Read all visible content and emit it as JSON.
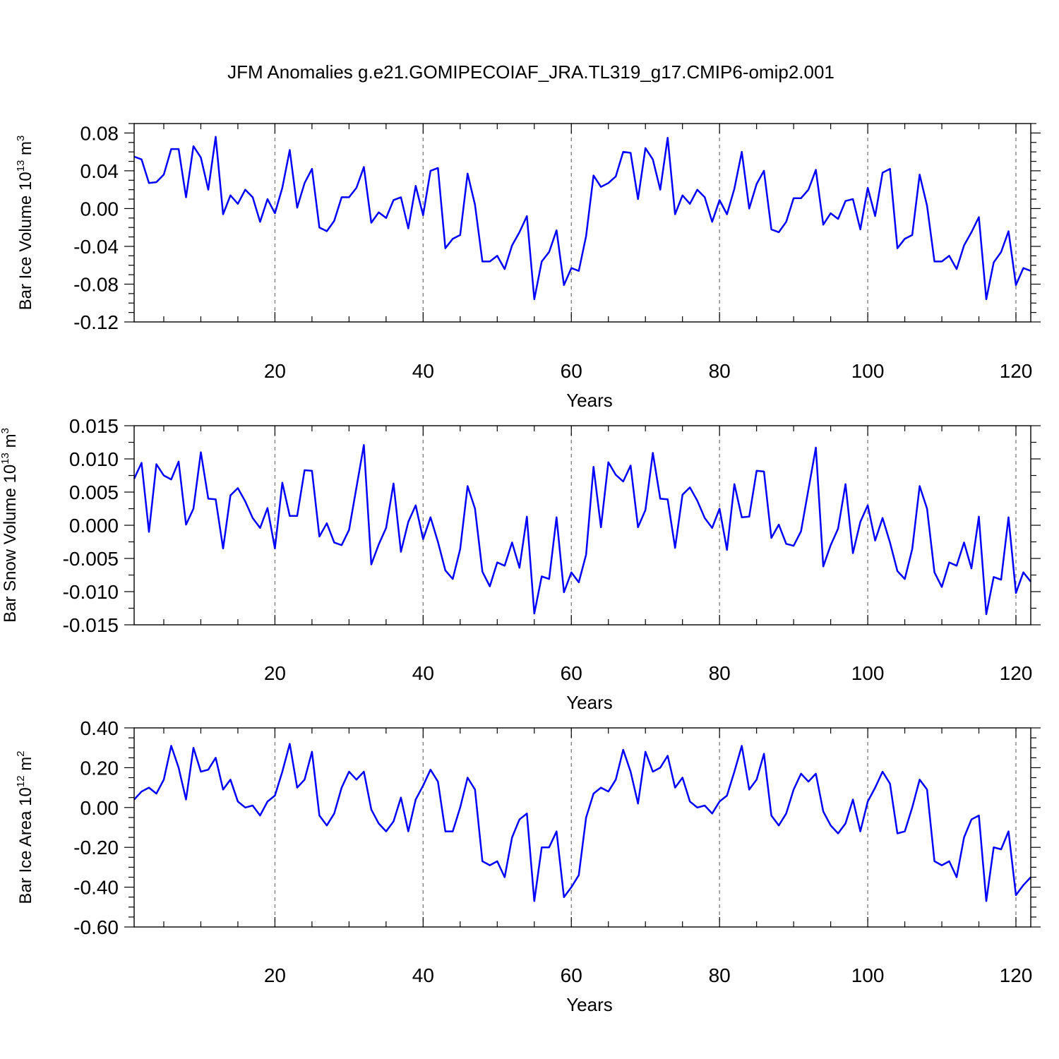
{
  "title": "JFM Anomalies g.e21.GOMIPECOIAF_JRA.TL319_g17.CMIP6-omip2.001",
  "line_color": "#0000ff",
  "chart_data": [
    {
      "type": "line",
      "ylabel": "Bar Ice Volume 10",
      "ylabel_exp": "13",
      "ylabel_unit": "m",
      "ylabel_unit_exp": "3",
      "xlabel": "Years",
      "xlim": [
        1,
        122
      ],
      "ylim": [
        -0.12,
        0.09
      ],
      "xticks": [
        20,
        40,
        60,
        80,
        100,
        120
      ],
      "xtick_labels": [
        "20",
        "40",
        "60",
        "80",
        "100",
        "120"
      ],
      "yticks": [
        -0.12,
        -0.08,
        -0.04,
        0.0,
        0.04,
        0.08
      ],
      "ytick_labels": [
        "-0.12",
        "-0.08",
        "-0.04",
        "0.00",
        "0.04",
        "0.08"
      ],
      "grid": "vertical dashed at major x ticks",
      "series": [
        {
          "values": [
            0.055,
            0.052,
            0.027,
            0.028,
            0.036,
            0.063,
            0.063,
            0.012,
            0.066,
            0.054,
            0.02,
            0.076,
            -0.006,
            0.014,
            0.005,
            0.02,
            0.012,
            -0.014,
            0.01,
            -0.005,
            0.022,
            0.062,
            0.001,
            0.027,
            0.042,
            -0.02,
            -0.024,
            -0.013,
            0.012,
            0.012,
            0.022,
            0.044,
            -0.015,
            -0.004,
            -0.01,
            0.009,
            0.012,
            -0.021,
            0.024,
            -0.007,
            0.04,
            0.043,
            -0.042,
            -0.032,
            -0.028,
            0.037,
            0.004,
            -0.056,
            -0.056,
            -0.05,
            -0.064,
            -0.039,
            -0.025,
            -0.008,
            -0.096,
            -0.056,
            -0.046,
            -0.023,
            -0.081,
            -0.063,
            -0.066,
            -0.029,
            0.035,
            0.023,
            0.027,
            0.034,
            0.06,
            0.059,
            0.01,
            0.064,
            0.052,
            0.02,
            0.075,
            -0.006,
            0.014,
            0.005,
            0.02,
            0.012,
            -0.014,
            0.009,
            -0.006,
            0.021,
            0.06,
            0.0,
            0.026,
            0.04,
            -0.022,
            -0.025,
            -0.014,
            0.011,
            0.011,
            0.02,
            0.041,
            -0.017,
            -0.005,
            -0.011,
            0.008,
            0.01,
            -0.022,
            0.022,
            -0.008,
            0.038,
            0.042,
            -0.042,
            -0.032,
            -0.028,
            0.036,
            0.003,
            -0.056,
            -0.056,
            -0.05,
            -0.064,
            -0.039,
            -0.025,
            -0.009,
            -0.096,
            -0.057,
            -0.046,
            -0.024,
            -0.081,
            -0.063,
            -0.066
          ]
        }
      ]
    },
    {
      "type": "line",
      "ylabel": "Bar Snow Volume 10",
      "ylabel_exp": "13",
      "ylabel_unit": "m",
      "ylabel_unit_exp": "3",
      "xlabel": "Years",
      "xlim": [
        1,
        122
      ],
      "ylim": [
        -0.015,
        0.015
      ],
      "xticks": [
        20,
        40,
        60,
        80,
        100,
        120
      ],
      "xtick_labels": [
        "20",
        "40",
        "60",
        "80",
        "100",
        "120"
      ],
      "yticks": [
        -0.015,
        -0.01,
        -0.005,
        0.0,
        0.005,
        0.01,
        0.015
      ],
      "ytick_labels": [
        "-0.015",
        "-0.010",
        "-0.005",
        "0.000",
        "0.005",
        "0.010",
        "0.015"
      ],
      "grid": "vertical dashed at major x ticks",
      "series": [
        {
          "values": [
            0.007,
            0.0094,
            -0.001,
            0.0092,
            0.0075,
            0.0069,
            0.0096,
            0.0001,
            0.0025,
            0.011,
            0.004,
            0.0039,
            -0.0035,
            0.0045,
            0.0056,
            0.0036,
            0.0011,
            -0.0004,
            0.0026,
            -0.0035,
            0.0064,
            0.0014,
            0.0014,
            0.0083,
            0.0082,
            -0.0017,
            0.0003,
            -0.0026,
            -0.003,
            -0.0007,
            0.0057,
            0.0121,
            -0.0059,
            -0.0029,
            -0.0004,
            0.0063,
            -0.004,
            0.0005,
            0.003,
            -0.0021,
            0.0012,
            -0.0025,
            -0.0068,
            -0.0081,
            -0.0036,
            0.0059,
            0.0025,
            -0.007,
            -0.0092,
            -0.0056,
            -0.0061,
            -0.0026,
            -0.0064,
            0.0013,
            -0.0133,
            -0.0077,
            -0.0081,
            0.0012,
            -0.0101,
            -0.0071,
            -0.0086,
            -0.0044,
            0.0088,
            -0.0003,
            0.0095,
            0.0076,
            0.0066,
            0.009,
            -0.0003,
            0.0023,
            0.0109,
            0.004,
            0.0039,
            -0.0034,
            0.0046,
            0.0057,
            0.0037,
            0.0011,
            -0.0004,
            0.0025,
            -0.0037,
            0.0062,
            0.0012,
            0.0013,
            0.0082,
            0.0081,
            -0.0019,
            0.0001,
            -0.0028,
            -0.0031,
            -0.0009,
            0.0054,
            0.0117,
            -0.0062,
            -0.003,
            -0.0005,
            0.0062,
            -0.0042,
            0.0005,
            0.003,
            -0.0023,
            0.0011,
            -0.0026,
            -0.0069,
            -0.0081,
            -0.0036,
            0.0059,
            0.0025,
            -0.0071,
            -0.0093,
            -0.0056,
            -0.0061,
            -0.0026,
            -0.0065,
            0.0013,
            -0.0134,
            -0.0078,
            -0.0082,
            0.0012,
            -0.0102,
            -0.0071,
            -0.0085
          ]
        }
      ]
    },
    {
      "type": "line",
      "ylabel": "Bar Ice Area 10",
      "ylabel_exp": "12",
      "ylabel_unit": "m",
      "ylabel_unit_exp": "2",
      "xlabel": "Years",
      "xlim": [
        1,
        122
      ],
      "ylim": [
        -0.6,
        0.4
      ],
      "xticks": [
        20,
        40,
        60,
        80,
        100,
        120
      ],
      "xtick_labels": [
        "20",
        "40",
        "60",
        "80",
        "100",
        "120"
      ],
      "yticks": [
        -0.6,
        -0.4,
        -0.2,
        0.0,
        0.2,
        0.4
      ],
      "ytick_labels": [
        "-0.60",
        "-0.40",
        "-0.20",
        "0.00",
        "0.20",
        "0.40"
      ],
      "grid": "vertical dashed at major x ticks",
      "series": [
        {
          "values": [
            0.04,
            0.08,
            0.1,
            0.07,
            0.14,
            0.31,
            0.2,
            0.04,
            0.3,
            0.18,
            0.19,
            0.25,
            0.09,
            0.14,
            0.03,
            0.0,
            0.01,
            -0.04,
            0.03,
            0.06,
            0.18,
            0.32,
            0.1,
            0.14,
            0.28,
            -0.04,
            -0.09,
            -0.03,
            0.1,
            0.18,
            0.14,
            0.18,
            -0.01,
            -0.08,
            -0.12,
            -0.07,
            0.05,
            -0.12,
            0.04,
            0.11,
            0.19,
            0.13,
            -0.12,
            -0.12,
            0.0,
            0.15,
            0.09,
            -0.27,
            -0.29,
            -0.27,
            -0.35,
            -0.15,
            -0.06,
            -0.03,
            -0.47,
            -0.2,
            -0.2,
            -0.12,
            -0.45,
            -0.4,
            -0.34,
            -0.05,
            0.07,
            0.1,
            0.08,
            0.14,
            0.29,
            0.18,
            0.02,
            0.28,
            0.18,
            0.2,
            0.26,
            0.1,
            0.15,
            0.03,
            0.0,
            0.01,
            -0.03,
            0.03,
            0.06,
            0.18,
            0.31,
            0.09,
            0.14,
            0.27,
            -0.04,
            -0.09,
            -0.03,
            0.09,
            0.17,
            0.13,
            0.17,
            -0.02,
            -0.09,
            -0.13,
            -0.08,
            0.04,
            -0.12,
            0.03,
            0.1,
            0.18,
            0.12,
            -0.13,
            -0.12,
            0.0,
            0.14,
            0.09,
            -0.27,
            -0.29,
            -0.27,
            -0.35,
            -0.15,
            -0.06,
            -0.04,
            -0.47,
            -0.2,
            -0.21,
            -0.12,
            -0.44,
            -0.39,
            -0.35
          ]
        }
      ]
    }
  ]
}
